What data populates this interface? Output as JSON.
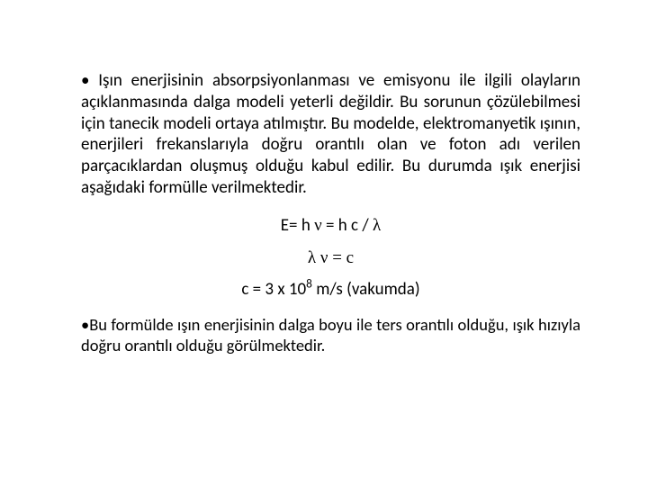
{
  "document": {
    "background_color": "#ffffff",
    "text_color": "#000000",
    "font_family": "Calibri, Arial, sans-serif",
    "base_font_size": 19,
    "symbol_font": "Symbol, Times New Roman, serif"
  },
  "para1": {
    "bullet": "• ",
    "text": "Işın enerjisinin absorpsiyonlanması ve emisyonu ile ilgili olayların açıklanmasında dalga modeli yeterli değildir. Bu sorunun çözülebilmesi için tanecik modeli ortaya atılmıştır. Bu modelde, elektromanyetik ışının, enerjileri frekanslarıyla doğru orantılı olan ve foton adı verilen parçacıklardan oluşmuş olduğu kabul edilir. Bu durumda ışık enerjisi aşağıdaki formülle verilmektedir."
  },
  "formula1": {
    "prefix": "E= h ",
    "symbol1": "ν",
    "mid": " = h c / ",
    "symbol2": "λ"
  },
  "formula2": {
    "symbol1": "λ",
    "space": " ",
    "symbol2": "ν",
    "suffix": " = c"
  },
  "formula3": {
    "prefix": "c = 3 x 10",
    "exponent": "8",
    "suffix": " m/s (vakumda)"
  },
  "para2": {
    "bullet": "•",
    "text": "Bu formülde ışın enerjisinin dalga boyu ile ters orantılı olduğu, ışık hızıyla doğru orantılı olduğu görülmektedir."
  }
}
